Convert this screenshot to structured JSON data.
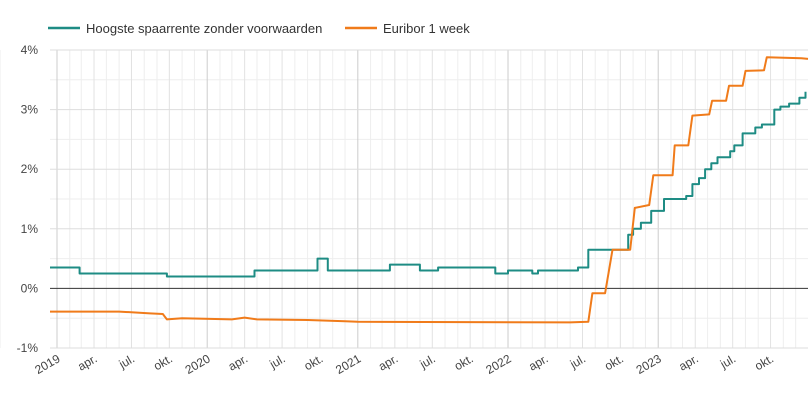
{
  "chart_data": {
    "type": "line",
    "title": "",
    "xlabel": "",
    "ylabel": "",
    "legend_position": "top-left",
    "grid": true,
    "x_range": [
      "2018-12-15",
      "2023-12-31"
    ],
    "ylim": [
      -1,
      4
    ],
    "y_ticks": [
      {
        "value": 4,
        "label": "4%"
      },
      {
        "value": 3,
        "label": "3%"
      },
      {
        "value": 2,
        "label": "2%"
      },
      {
        "value": 1,
        "label": "1%"
      },
      {
        "value": 0,
        "label": "0%"
      },
      {
        "value": -1,
        "label": "-1%"
      }
    ],
    "x_ticks": [
      {
        "date": "2019-01-01",
        "label": "2019"
      },
      {
        "date": "2019-04-01",
        "label": "apr."
      },
      {
        "date": "2019-07-01",
        "label": "jul."
      },
      {
        "date": "2019-10-01",
        "label": "okt."
      },
      {
        "date": "2020-01-01",
        "label": "2020"
      },
      {
        "date": "2020-04-01",
        "label": "apr."
      },
      {
        "date": "2020-07-01",
        "label": "jul."
      },
      {
        "date": "2020-10-01",
        "label": "okt."
      },
      {
        "date": "2021-01-01",
        "label": "2021"
      },
      {
        "date": "2021-04-01",
        "label": "apr."
      },
      {
        "date": "2021-07-01",
        "label": "jul."
      },
      {
        "date": "2021-10-01",
        "label": "okt."
      },
      {
        "date": "2022-01-01",
        "label": "2022"
      },
      {
        "date": "2022-04-01",
        "label": "apr."
      },
      {
        "date": "2022-07-01",
        "label": "jul."
      },
      {
        "date": "2022-10-01",
        "label": "okt."
      },
      {
        "date": "2023-01-01",
        "label": "2023"
      },
      {
        "date": "2023-04-01",
        "label": "apr."
      },
      {
        "date": "2023-07-01",
        "label": "jul."
      },
      {
        "date": "2023-10-01",
        "label": "okt."
      }
    ],
    "series": [
      {
        "name": "Hoogste spaarrente zonder voorwaarden",
        "color": "#1e8c84",
        "step": true,
        "points": [
          [
            "2018-12-15",
            0.35
          ],
          [
            "2019-02-25",
            0.25
          ],
          [
            "2019-09-25",
            0.2
          ],
          [
            "2020-04-25",
            0.3
          ],
          [
            "2020-09-25",
            0.5
          ],
          [
            "2020-10-20",
            0.3
          ],
          [
            "2021-03-20",
            0.4
          ],
          [
            "2021-06-01",
            0.3
          ],
          [
            "2021-07-15",
            0.35
          ],
          [
            "2021-12-01",
            0.25
          ],
          [
            "2022-01-01",
            0.3
          ],
          [
            "2022-03-01",
            0.25
          ],
          [
            "2022-03-15",
            0.3
          ],
          [
            "2022-06-20",
            0.35
          ],
          [
            "2022-07-15",
            0.65
          ],
          [
            "2022-09-15",
            0.65
          ],
          [
            "2022-10-20",
            0.9
          ],
          [
            "2022-11-01",
            1.0
          ],
          [
            "2022-11-20",
            1.1
          ],
          [
            "2022-12-15",
            1.3
          ],
          [
            "2023-01-15",
            1.5
          ],
          [
            "2023-03-10",
            1.55
          ],
          [
            "2023-03-25",
            1.75
          ],
          [
            "2023-04-10",
            1.85
          ],
          [
            "2023-04-25",
            2.0
          ],
          [
            "2023-05-10",
            2.1
          ],
          [
            "2023-05-25",
            2.2
          ],
          [
            "2023-06-25",
            2.3
          ],
          [
            "2023-07-05",
            2.4
          ],
          [
            "2023-07-25",
            2.6
          ],
          [
            "2023-08-25",
            2.7
          ],
          [
            "2023-09-10",
            2.75
          ],
          [
            "2023-10-10",
            3.0
          ],
          [
            "2023-10-25",
            3.05
          ],
          [
            "2023-11-15",
            3.1
          ],
          [
            "2023-12-10",
            3.2
          ],
          [
            "2023-12-25",
            3.3
          ]
        ]
      },
      {
        "name": "Euribor 1 week",
        "color": "#f07b1a",
        "step": false,
        "points": [
          [
            "2018-12-15",
            -0.39
          ],
          [
            "2019-06-01",
            -0.39
          ],
          [
            "2019-08-15",
            -0.42
          ],
          [
            "2019-09-15",
            -0.43
          ],
          [
            "2019-09-25",
            -0.52
          ],
          [
            "2019-11-01",
            -0.5
          ],
          [
            "2020-03-01",
            -0.52
          ],
          [
            "2020-04-01",
            -0.49
          ],
          [
            "2020-05-01",
            -0.52
          ],
          [
            "2020-09-01",
            -0.53
          ],
          [
            "2020-12-01",
            -0.55
          ],
          [
            "2021-01-01",
            -0.56
          ],
          [
            "2022-06-01",
            -0.57
          ],
          [
            "2022-07-15",
            -0.56
          ],
          [
            "2022-07-25",
            -0.08
          ],
          [
            "2022-08-25",
            -0.08
          ],
          [
            "2022-09-12",
            0.65
          ],
          [
            "2022-10-25",
            0.65
          ],
          [
            "2022-11-05",
            1.35
          ],
          [
            "2022-12-10",
            1.4
          ],
          [
            "2022-12-20",
            1.9
          ],
          [
            "2023-02-05",
            1.9
          ],
          [
            "2023-02-10",
            2.4
          ],
          [
            "2023-03-15",
            2.4
          ],
          [
            "2023-03-25",
            2.9
          ],
          [
            "2023-05-05",
            2.92
          ],
          [
            "2023-05-12",
            3.15
          ],
          [
            "2023-06-15",
            3.15
          ],
          [
            "2023-06-22",
            3.4
          ],
          [
            "2023-07-25",
            3.4
          ],
          [
            "2023-08-01",
            3.65
          ],
          [
            "2023-09-15",
            3.66
          ],
          [
            "2023-09-22",
            3.88
          ],
          [
            "2023-12-15",
            3.86
          ],
          [
            "2023-12-31",
            3.85
          ]
        ]
      }
    ]
  }
}
